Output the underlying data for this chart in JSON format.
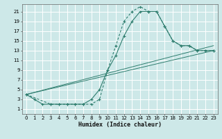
{
  "xlabel": "Humidex (Indice chaleur)",
  "background_color": "#cde8e8",
  "grid_color": "#ffffff",
  "line_color": "#2e7d6e",
  "xlim": [
    -0.5,
    23.5
  ],
  "ylim": [
    0,
    22.5
  ],
  "xticks": [
    0,
    1,
    2,
    3,
    4,
    5,
    6,
    7,
    8,
    9,
    10,
    11,
    12,
    13,
    14,
    15,
    16,
    17,
    18,
    19,
    20,
    21,
    22,
    23
  ],
  "yticks": [
    1,
    3,
    5,
    7,
    9,
    11,
    13,
    15,
    17,
    19,
    21
  ],
  "curve1_x": [
    0,
    1,
    2,
    3,
    4,
    5,
    6,
    7,
    8,
    9,
    10,
    11,
    12,
    13,
    14,
    15,
    16,
    17,
    18,
    19,
    20,
    21,
    22,
    23
  ],
  "curve1_y": [
    4,
    3,
    2,
    2,
    2,
    2,
    2,
    2,
    3,
    5,
    9,
    12,
    16,
    19,
    21,
    21,
    21,
    18,
    15,
    14,
    14,
    13,
    13,
    13
  ],
  "curve2_x": [
    0,
    3,
    4,
    5,
    6,
    7,
    8,
    9,
    10,
    11,
    12,
    13,
    14,
    15,
    16,
    17,
    18,
    19,
    20,
    21,
    22,
    23
  ],
  "curve2_y": [
    4,
    2,
    2,
    2,
    2,
    2,
    2,
    3,
    9,
    14,
    19,
    21,
    22,
    21,
    21,
    18,
    15,
    14,
    14,
    13,
    13,
    13
  ],
  "line3_x": [
    0,
    23
  ],
  "line3_y": [
    4,
    14
  ],
  "line4_x": [
    0,
    23
  ],
  "line4_y": [
    4,
    13
  ],
  "tick_fontsize": 5,
  "xlabel_fontsize": 6
}
